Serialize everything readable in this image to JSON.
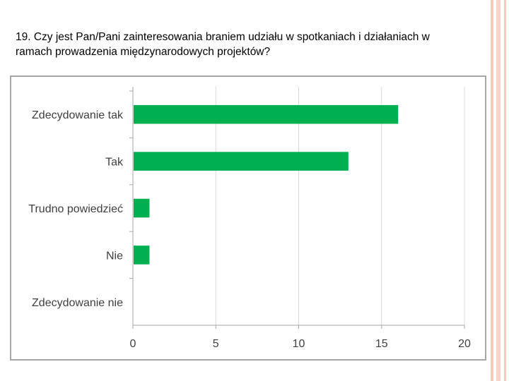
{
  "slide": {
    "question": "19. Czy jest Pan/Pani zainteresowania braniem udziału w spotkaniach i działaniach w ramach prowadzenia międzynarodowych projektów?",
    "stripe_colors": [
      "#f4c9b8",
      "#f7d6ca",
      "#f4c9b8"
    ]
  },
  "chart_data": {
    "type": "bar",
    "orientation": "horizontal",
    "categories": [
      "Zdecydowanie tak",
      "Tak",
      "Trudno powiedzieć",
      "Nie",
      "Zdecydowanie nie"
    ],
    "values": [
      16,
      13,
      1,
      1,
      0
    ],
    "xlim": [
      0,
      20
    ],
    "xticks": [
      0,
      5,
      10,
      15,
      20
    ],
    "bar_color": "#00b050",
    "grid": "vertical",
    "grid_color": "#d9d9d9",
    "title": "",
    "xlabel": "",
    "ylabel": ""
  }
}
